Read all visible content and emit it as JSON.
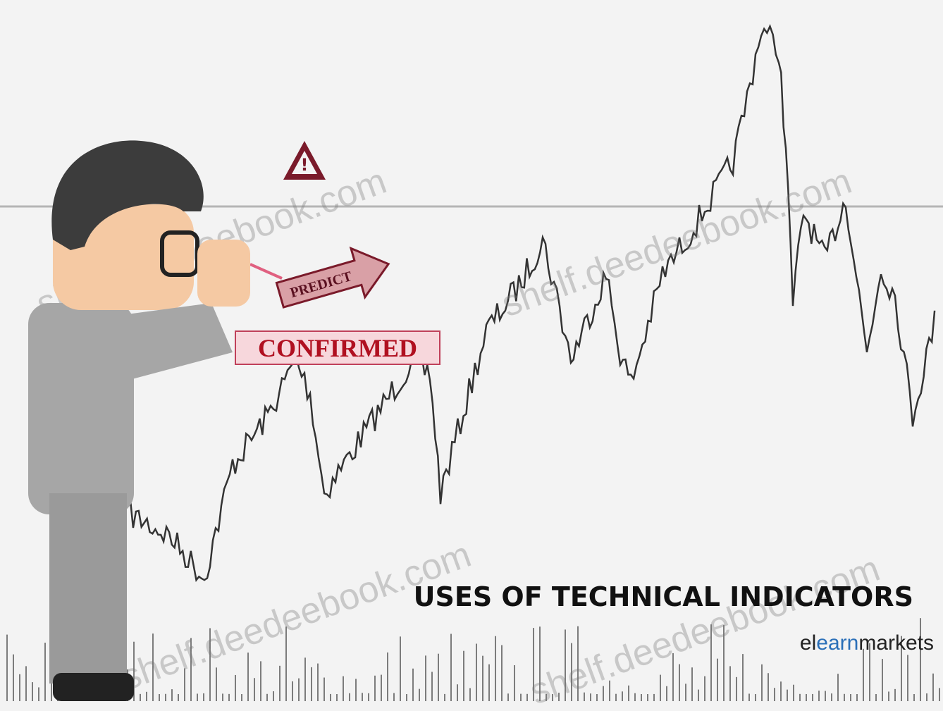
{
  "illustration": {
    "title": "USES OF TECHNICAL INDICATORS",
    "labels": {
      "predict": "PREDICT",
      "confirmed": "CONFIRMED",
      "warning": "!"
    },
    "logo": {
      "part1": "el",
      "part2": "earn",
      "part3": "markets"
    },
    "watermark": "shelf.deedeebook.com"
  }
}
